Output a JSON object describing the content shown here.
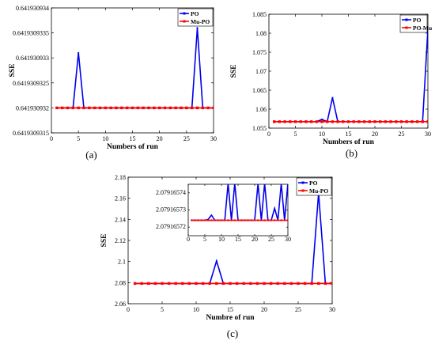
{
  "colors": {
    "po": "#0000ee",
    "mupo": "#ff0000",
    "axis": "#000000",
    "grid": "#d9d9d9"
  },
  "chart_data": [
    {
      "id": "a",
      "type": "line",
      "caption": "(a)",
      "xlabel": "Numbers of run",
      "ylabel": "SSE",
      "xlim": [
        0,
        30
      ],
      "ylim": [
        0.6419309315,
        0.641930934
      ],
      "xticks": [
        "0",
        "5",
        "10",
        "15",
        "20",
        "25",
        "30"
      ],
      "yticks": [
        "0.6419309315",
        "0.641930932",
        "0.6419309325",
        "0.641930933",
        "0.6419309335",
        "0.641930934"
      ],
      "ytick_values": [
        0.6419309315,
        0.641930932,
        0.6419309325,
        0.641930933,
        0.6419309335,
        0.641930934
      ],
      "grid": false,
      "legend_position": "top-right",
      "x": [
        1,
        2,
        3,
        4,
        5,
        6,
        7,
        8,
        9,
        10,
        11,
        12,
        13,
        14,
        15,
        16,
        17,
        18,
        19,
        20,
        21,
        22,
        23,
        24,
        25,
        26,
        27,
        28,
        29,
        30
      ],
      "series": [
        {
          "name": "PO",
          "color": "po",
          "values": [
            0.641930932,
            0.641930932,
            0.641930932,
            0.641930932,
            0.6419309331,
            0.641930932,
            0.641930932,
            0.641930932,
            0.641930932,
            0.641930932,
            0.641930932,
            0.641930932,
            0.641930932,
            0.641930932,
            0.641930932,
            0.641930932,
            0.641930932,
            0.641930932,
            0.641930932,
            0.641930932,
            0.641930932,
            0.641930932,
            0.641930932,
            0.641930932,
            0.641930932,
            0.641930932,
            0.6419309336,
            0.641930932,
            0.641930932,
            0.641930932
          ]
        },
        {
          "name": "Mu-PO",
          "color": "mupo",
          "values": [
            0.641930932,
            0.641930932,
            0.641930932,
            0.641930932,
            0.641930932,
            0.641930932,
            0.641930932,
            0.641930932,
            0.641930932,
            0.641930932,
            0.641930932,
            0.641930932,
            0.641930932,
            0.641930932,
            0.641930932,
            0.641930932,
            0.641930932,
            0.641930932,
            0.641930932,
            0.641930932,
            0.641930932,
            0.641930932,
            0.641930932,
            0.641930932,
            0.641930932,
            0.641930932,
            0.641930932,
            0.641930932,
            0.641930932,
            0.641930932
          ]
        }
      ]
    },
    {
      "id": "b",
      "type": "line",
      "caption": "(b)",
      "xlabel": "Numbers of run",
      "ylabel": "SSE",
      "xlim": [
        0,
        30
      ],
      "ylim": [
        1.055,
        1.085
      ],
      "xticks": [
        "0",
        "5",
        "10",
        "15",
        "20",
        "25",
        "30"
      ],
      "yticks": [
        "1.055",
        "1.06",
        "1.065",
        "1.07",
        "1.075",
        "1.08",
        "1.085"
      ],
      "ytick_values": [
        1.055,
        1.06,
        1.065,
        1.07,
        1.075,
        1.08,
        1.085
      ],
      "grid": false,
      "legend_position": "top-right",
      "x": [
        1,
        2,
        3,
        4,
        5,
        6,
        7,
        8,
        9,
        10,
        11,
        12,
        13,
        14,
        15,
        16,
        17,
        18,
        19,
        20,
        21,
        22,
        23,
        24,
        25,
        26,
        27,
        28,
        29,
        30
      ],
      "series": [
        {
          "name": "PO",
          "color": "po",
          "values": [
            1.0567,
            1.0567,
            1.0567,
            1.0567,
            1.0567,
            1.0567,
            1.0567,
            1.0567,
            1.0567,
            1.0573,
            1.0567,
            1.063,
            1.0567,
            1.0567,
            1.0567,
            1.0567,
            1.0567,
            1.0567,
            1.0567,
            1.0567,
            1.0567,
            1.0567,
            1.0567,
            1.0567,
            1.0567,
            1.0567,
            1.0567,
            1.0567,
            1.0567,
            1.081
          ]
        },
        {
          "name": "PO-Mu",
          "color": "mupo",
          "values": [
            1.0567,
            1.0567,
            1.0567,
            1.0567,
            1.0567,
            1.0567,
            1.0567,
            1.0567,
            1.0567,
            1.0567,
            1.0567,
            1.0567,
            1.0567,
            1.0567,
            1.0567,
            1.0567,
            1.0567,
            1.0567,
            1.0567,
            1.0567,
            1.0567,
            1.0567,
            1.0567,
            1.0567,
            1.0567,
            1.0567,
            1.0567,
            1.0567,
            1.0567,
            1.0567
          ]
        }
      ]
    },
    {
      "id": "c",
      "type": "line",
      "caption": "(c)",
      "xlabel": "Numbre of run",
      "ylabel": "SSE",
      "xlim": [
        0,
        30
      ],
      "ylim": [
        2.06,
        2.18
      ],
      "xticks": [
        "0",
        "5",
        "10",
        "15",
        "20",
        "25",
        "30"
      ],
      "yticks": [
        "2.06",
        "2.08",
        "2.1",
        "2.12",
        "2.14",
        "2.16",
        "2.18"
      ],
      "ytick_values": [
        2.06,
        2.08,
        2.1,
        2.12,
        2.14,
        2.16,
        2.18
      ],
      "grid": false,
      "legend_position": "top-right",
      "x": [
        1,
        2,
        3,
        4,
        5,
        6,
        7,
        8,
        9,
        10,
        11,
        12,
        13,
        14,
        15,
        16,
        17,
        18,
        19,
        20,
        21,
        22,
        23,
        24,
        25,
        26,
        27,
        28,
        29,
        30
      ],
      "series": [
        {
          "name": "PO",
          "color": "po",
          "values": [
            2.0792,
            2.0792,
            2.0792,
            2.0792,
            2.0792,
            2.0792,
            2.0792,
            2.0792,
            2.0792,
            2.0792,
            2.0792,
            2.0792,
            2.1005,
            2.0792,
            2.0792,
            2.0792,
            2.0792,
            2.0792,
            2.0792,
            2.0792,
            2.0792,
            2.0792,
            2.0792,
            2.0792,
            2.0792,
            2.0792,
            2.0792,
            2.165,
            2.0792,
            2.0792
          ]
        },
        {
          "name": "Mu-PO",
          "color": "mupo",
          "values": [
            2.0792,
            2.0792,
            2.0792,
            2.0792,
            2.0792,
            2.0792,
            2.0792,
            2.0792,
            2.0792,
            2.0792,
            2.0792,
            2.0792,
            2.0792,
            2.0792,
            2.0792,
            2.0792,
            2.0792,
            2.0792,
            2.0792,
            2.0792,
            2.0792,
            2.0792,
            2.0792,
            2.0792,
            2.0792,
            2.0792,
            2.0792,
            2.0792,
            2.0792,
            2.0792
          ]
        }
      ],
      "inset": {
        "xlim": [
          0,
          30
        ],
        "ylim": [
          2.079165715,
          2.079165745
        ],
        "xticks": [
          "0",
          "5",
          "10",
          "15",
          "20",
          "25",
          "30"
        ],
        "yticks": [
          "2.07916572",
          "2.07916573",
          "2.07916574"
        ],
        "ytick_values": [
          2.07916572,
          2.07916573,
          2.07916574
        ],
        "x": [
          1,
          2,
          3,
          4,
          5,
          6,
          7,
          8,
          9,
          10,
          11,
          12,
          13,
          14,
          15,
          16,
          17,
          18,
          19,
          20,
          21,
          22,
          23,
          24,
          25,
          26,
          27,
          28,
          29,
          30
        ],
        "series": [
          {
            "name": "PO",
            "color": "po",
            "values": [
              2.079165724,
              2.079165724,
              2.079165724,
              2.079165724,
              2.079165724,
              2.0791657245,
              2.079165727,
              2.079165724,
              2.079165724,
              2.079165724,
              2.079165724,
              2.0791657455,
              2.079165724,
              2.0791657455,
              2.079165724,
              2.079165724,
              2.079165724,
              2.079165724,
              2.079165724,
              2.079165724,
              2.0791657455,
              2.079165724,
              2.0791657455,
              2.079165724,
              2.079165724,
              2.079165731,
              2.079165724,
              2.0791657455,
              2.079165724,
              2.0791657455
            ]
          },
          {
            "name": "Mu-PO",
            "color": "mupo",
            "values": [
              2.079165724,
              2.079165724,
              2.079165724,
              2.079165724,
              2.079165724,
              2.079165724,
              2.079165724,
              2.079165724,
              2.079165724,
              2.079165724,
              2.079165724,
              2.079165724,
              2.079165724,
              2.079165724,
              2.079165724,
              2.079165724,
              2.079165724,
              2.079165724,
              2.079165724,
              2.079165724,
              2.079165724,
              2.079165724,
              2.079165724,
              2.079165724,
              2.079165724,
              2.079165724,
              2.079165724,
              2.079165724,
              2.079165724,
              2.079165724
            ]
          }
        ]
      }
    }
  ]
}
